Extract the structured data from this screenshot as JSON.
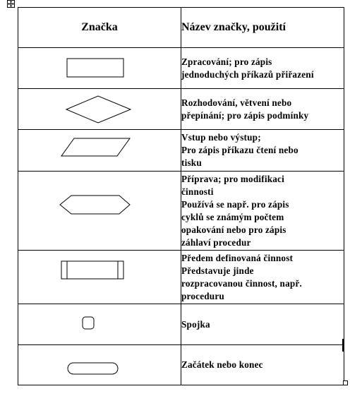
{
  "table": {
    "headers": {
      "symbol": "Značka",
      "name": "Název značky, použití"
    },
    "rows": [
      {
        "symbol_icon": "process-rectangle-icon",
        "description": "Zpracování; pro zápis\njednoduchých příkazů přiřazení"
      },
      {
        "symbol_icon": "decision-diamond-icon",
        "description": "Rozhodování, větvení nebo\npřepínání;  pro zápis podmínky"
      },
      {
        "symbol_icon": "input-output-parallelogram-icon",
        "description": "Vstup nebo výstup;\nPro zápis příkazu čtení nebo\ntisku"
      },
      {
        "symbol_icon": "preparation-hexagon-icon",
        "description": "Příprava; pro modifikaci\nčinnosti\nPoužívá se  např. pro zápis\ncyklů se známým počtem\nopakování nebo pro zápis\nzáhlaví procedur"
      },
      {
        "symbol_icon": "predefined-process-icon",
        "description": "Předem definovaná činnost\nPředstavuje jinde\nrozpracovanou činnost, např.\nproceduru"
      },
      {
        "symbol_icon": "connector-icon",
        "description": "Spojka"
      },
      {
        "symbol_icon": "terminator-icon",
        "description": "Začátek nebo konec"
      }
    ]
  }
}
